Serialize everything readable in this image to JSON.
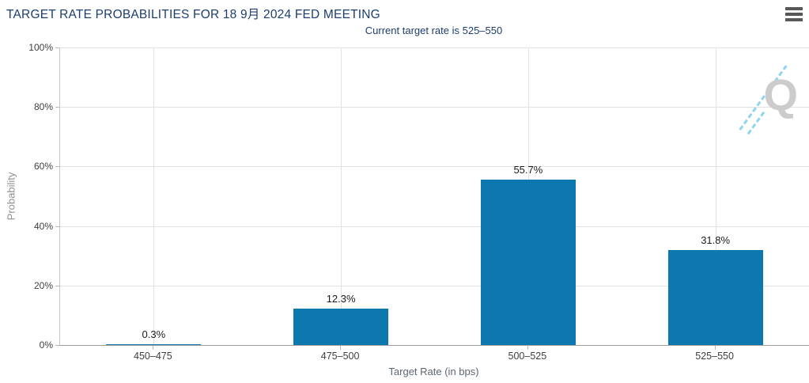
{
  "header": {
    "title": "TARGET RATE PROBABILITIES FOR 18 9月 2024 FED MEETING",
    "subtitle": "Current target rate is 525–550"
  },
  "watermark": {
    "letter": "Q"
  },
  "colors": {
    "bar": "#0d78b0",
    "title_navy": "#1c3e6e",
    "watermark_dash": "#8fd4ef",
    "gridline": "#e2e2e2"
  },
  "chart_data": {
    "type": "bar",
    "title": "TARGET RATE PROBABILITIES FOR 18 9月 2024 FED MEETING",
    "subtitle": "Current target rate is 525–550",
    "categories": [
      "450–475",
      "475–500",
      "500–525",
      "525–550"
    ],
    "values": [
      0.3,
      12.3,
      55.7,
      31.8
    ],
    "value_labels": [
      "0.3%",
      "12.3%",
      "55.7%",
      "31.8%"
    ],
    "xlabel": "Target Rate (in bps)",
    "ylabel": "Probability",
    "ylim": [
      0,
      100
    ],
    "yticks": [
      "0%",
      "20%",
      "40%",
      "60%",
      "80%",
      "100%"
    ],
    "ytick_values": [
      0,
      20,
      40,
      60,
      80,
      100
    ],
    "grid": true,
    "legend": "none",
    "bar_color": "#0d78b0"
  }
}
